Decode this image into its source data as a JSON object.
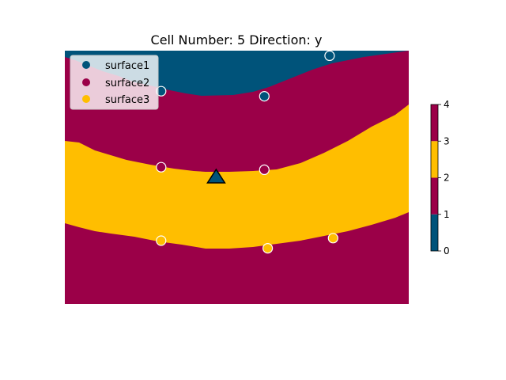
{
  "chart_data": {
    "type": "heatmap",
    "title": "Cell Number: 5 Direction: y",
    "colors": {
      "surface1": "#00537a",
      "surface2": "#9b0048",
      "surface3": "#ffbe00",
      "outline": "#ffffff"
    },
    "legend": {
      "position": "top-left",
      "entries": [
        "surface1",
        "surface2",
        "surface3"
      ]
    },
    "colorbar": {
      "ticks": [
        "0",
        "1",
        "2",
        "3",
        "4"
      ],
      "segments": [
        "surface1",
        "surface2",
        "surface3",
        "surface2"
      ]
    },
    "grid": false,
    "axes_visible": false,
    "series": [
      {
        "name": "surface1",
        "points": [
          [
            0.28,
            0.84
          ],
          [
            0.58,
            0.82
          ],
          [
            0.77,
            0.98
          ]
        ]
      },
      {
        "name": "surface2",
        "points": [
          [
            0.28,
            0.54
          ],
          [
            0.58,
            0.53
          ]
        ]
      },
      {
        "name": "surface3",
        "points": [
          [
            0.28,
            0.25
          ],
          [
            0.59,
            0.22
          ],
          [
            0.78,
            0.26
          ]
        ]
      }
    ],
    "orientation_marker": {
      "shape": "triangle",
      "position": [
        0.44,
        0.5
      ]
    }
  }
}
